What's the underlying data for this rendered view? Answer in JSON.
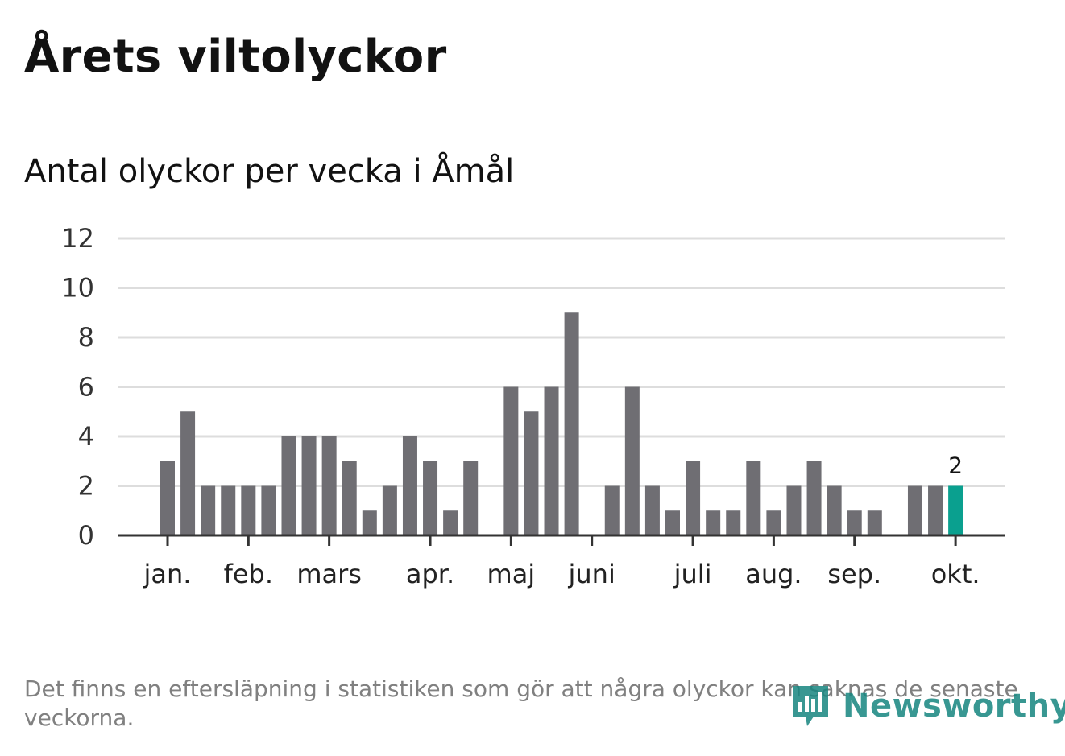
{
  "title": "Årets viltolyckor",
  "subtitle": "Antal olyckor per vecka i Åmål",
  "footnote": "Det finns en eftersläpning i statistiken som gör att några olyckor kan saknas de senaste veckorna.",
  "brand": {
    "name": "Newsworthy",
    "color": "#16857f",
    "icon": "bar-chart-icon"
  },
  "colors": {
    "bar": "#6f6e73",
    "highlight": "#0aa08f",
    "grid": "#dddddd",
    "axis": "#333333"
  },
  "chart_data": {
    "type": "bar",
    "title": "Antal olyckor per vecka i Åmål",
    "xlabel": "",
    "ylabel": "",
    "ylim": [
      0,
      12
    ],
    "yticks": [
      0,
      2,
      4,
      6,
      8,
      10,
      12
    ],
    "weeks": [
      1,
      2,
      3,
      4,
      5,
      6,
      7,
      8,
      9,
      10,
      11,
      12,
      13,
      14,
      15,
      16,
      17,
      18,
      19,
      20,
      21,
      22,
      23,
      24,
      25,
      26,
      27,
      28,
      29,
      30,
      31,
      32,
      33,
      34,
      35,
      36,
      37,
      38,
      39,
      40
    ],
    "values": [
      3,
      5,
      2,
      2,
      2,
      2,
      4,
      4,
      4,
      3,
      1,
      2,
      4,
      3,
      1,
      3,
      0,
      6,
      5,
      6,
      9,
      0,
      2,
      6,
      2,
      1,
      3,
      1,
      1,
      3,
      1,
      2,
      3,
      2,
      1,
      1,
      0,
      2,
      2,
      2
    ],
    "month_ticks": [
      {
        "label": "jan.",
        "week": 1
      },
      {
        "label": "feb.",
        "week": 5
      },
      {
        "label": "mars",
        "week": 9
      },
      {
        "label": "apr.",
        "week": 14
      },
      {
        "label": "maj",
        "week": 18
      },
      {
        "label": "juni",
        "week": 22
      },
      {
        "label": "juli",
        "week": 27
      },
      {
        "label": "aug.",
        "week": 31
      },
      {
        "label": "sep.",
        "week": 35
      },
      {
        "label": "okt.",
        "week": 40
      }
    ],
    "highlight_week": 40,
    "highlight_label": "2"
  }
}
